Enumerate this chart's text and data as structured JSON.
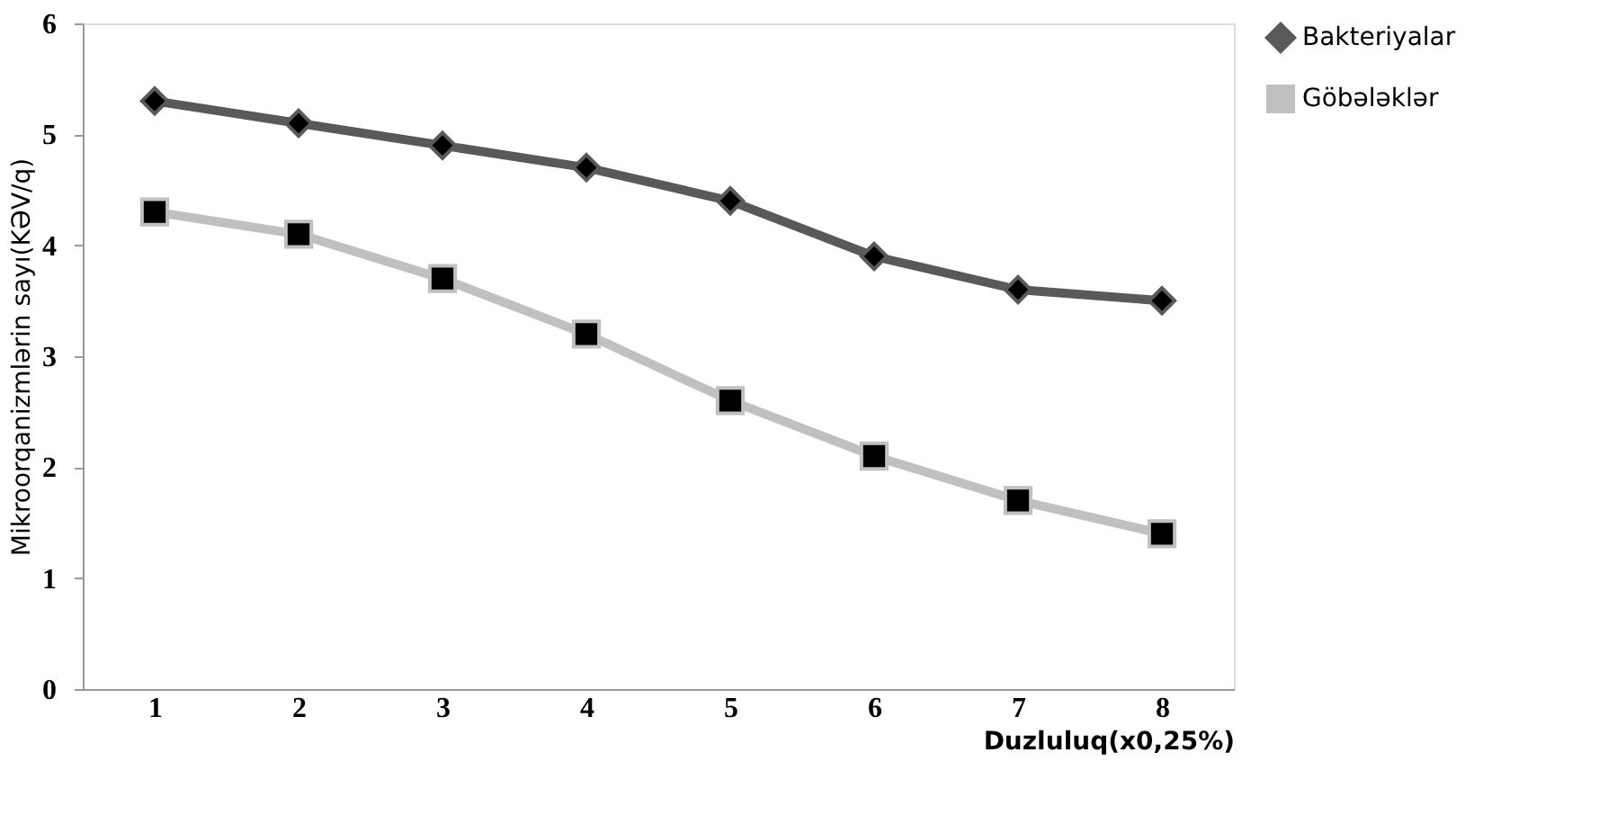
{
  "chart_data": {
    "type": "line",
    "categories": [
      "1",
      "2",
      "3",
      "4",
      "5",
      "6",
      "7",
      "8"
    ],
    "xlabel": "Duzluluq(x0,25%)",
    "ylabel": "Mikroorqanizmlərin sayı(KƏV/q)",
    "ylim": [
      0,
      6
    ],
    "yticks": [
      0,
      1,
      2,
      3,
      4,
      5,
      6
    ],
    "grid": false,
    "legend": "right",
    "series": [
      {
        "name": "Bakteriyalar",
        "color": "#595959",
        "marker": "diamond",
        "values": [
          5.3,
          5.1,
          4.9,
          4.7,
          4.4,
          3.9,
          3.6,
          3.5
        ]
      },
      {
        "name": "Göbələklər",
        "color": "#c0c0c0",
        "marker": "square",
        "values": [
          4.3,
          4.1,
          3.7,
          3.2,
          2.6,
          2.1,
          1.7,
          1.4
        ]
      }
    ]
  }
}
